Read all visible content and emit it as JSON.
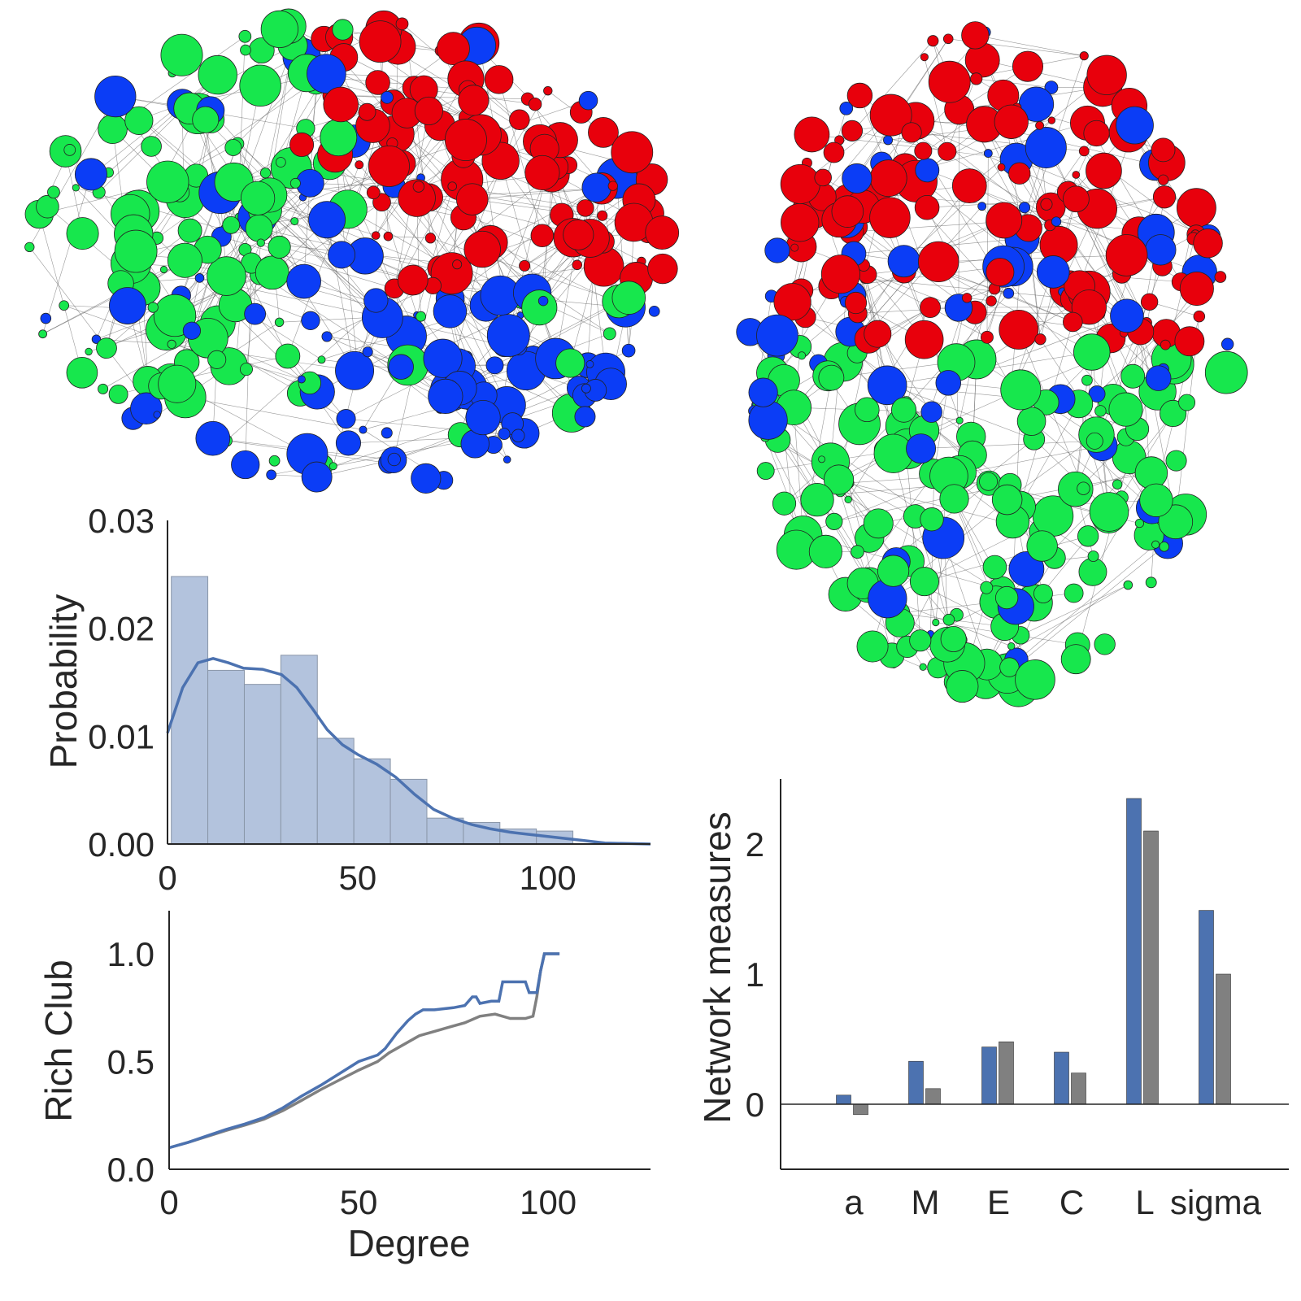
{
  "colors": {
    "green": "#17e74d",
    "red": "#e8000c",
    "blue": "#0b3df6",
    "hist_fill": "#b3c3dd",
    "series_blue": "#4c72b0",
    "series_gray": "#808080",
    "edge": "#555555"
  },
  "network_views": [
    {
      "view": "sagittal",
      "node_colors": [
        "green",
        "red",
        "blue"
      ]
    },
    {
      "view": "axial",
      "node_colors": [
        "green",
        "red",
        "blue"
      ]
    }
  ],
  "chart_data": [
    {
      "type": "bar",
      "subtype": "histogram_with_kde",
      "ylabel": "Probability",
      "xlabel": "",
      "xlim": [
        0,
        127
      ],
      "ylim": [
        0,
        0.03
      ],
      "xticks": [
        "0",
        "50",
        "100"
      ],
      "yticks": [
        "0.00",
        "0.01",
        "0.02",
        "0.03"
      ],
      "bins": [
        {
          "x0": 1,
          "x1": 10.6,
          "value": 0.0248
        },
        {
          "x0": 10.6,
          "x1": 20.2,
          "value": 0.0161
        },
        {
          "x0": 20.2,
          "x1": 29.8,
          "value": 0.0148
        },
        {
          "x0": 29.8,
          "x1": 39.4,
          "value": 0.0175
        },
        {
          "x0": 39.4,
          "x1": 49.0,
          "value": 0.0098
        },
        {
          "x0": 49.0,
          "x1": 58.6,
          "value": 0.0079
        },
        {
          "x0": 58.6,
          "x1": 68.2,
          "value": 0.006
        },
        {
          "x0": 68.2,
          "x1": 77.8,
          "value": 0.0024
        },
        {
          "x0": 77.8,
          "x1": 87.4,
          "value": 0.002
        },
        {
          "x0": 87.4,
          "x1": 97.0,
          "value": 0.0014
        },
        {
          "x0": 97.0,
          "x1": 106.6,
          "value": 0.0012
        }
      ],
      "kde": {
        "x": [
          0,
          4,
          8,
          12,
          16,
          20,
          25,
          30,
          34,
          38,
          42,
          46,
          50,
          55,
          60,
          65,
          70,
          75,
          80,
          85,
          90,
          95,
          100,
          105,
          110,
          115,
          120,
          127
        ],
        "y": [
          0.0103,
          0.0145,
          0.0168,
          0.0172,
          0.0168,
          0.0163,
          0.0162,
          0.0157,
          0.0145,
          0.0126,
          0.0106,
          0.0092,
          0.0083,
          0.0074,
          0.0062,
          0.0046,
          0.0032,
          0.0024,
          0.0018,
          0.0014,
          0.0011,
          0.0009,
          0.0007,
          0.0005,
          0.0003,
          0.0001,
          5e-05,
          0.0
        ]
      }
    },
    {
      "type": "line",
      "ylabel": "Rich Club",
      "xlabel": "Degree",
      "xlim": [
        0,
        127
      ],
      "ylim": [
        0,
        1.2
      ],
      "xticks": [
        "0",
        "50",
        "100"
      ],
      "yticks": [
        "0.0",
        "0.5",
        "1.0"
      ],
      "series": [
        {
          "color": "series_blue",
          "x": [
            0,
            5,
            10,
            15,
            20,
            25,
            30,
            35,
            40,
            45,
            50,
            55,
            57,
            60,
            63,
            65,
            67,
            70,
            75,
            78,
            80,
            81,
            82,
            85,
            87,
            88,
            92,
            94,
            95,
            96,
            97,
            98,
            99,
            100,
            103
          ],
          "y": [
            0.1,
            0.125,
            0.155,
            0.185,
            0.21,
            0.24,
            0.285,
            0.34,
            0.39,
            0.445,
            0.5,
            0.53,
            0.56,
            0.63,
            0.69,
            0.72,
            0.74,
            0.74,
            0.75,
            0.76,
            0.8,
            0.8,
            0.77,
            0.78,
            0.78,
            0.87,
            0.87,
            0.87,
            0.82,
            0.82,
            0.82,
            0.92,
            1.0,
            1.0,
            1.0
          ]
        },
        {
          "color": "series_gray",
          "x": [
            0,
            5,
            10,
            15,
            20,
            25,
            30,
            35,
            40,
            45,
            50,
            55,
            58,
            62,
            66,
            70,
            74,
            78,
            82,
            86,
            90,
            94,
            96,
            97,
            98,
            99,
            103
          ],
          "y": [
            0.1,
            0.125,
            0.152,
            0.18,
            0.205,
            0.232,
            0.272,
            0.32,
            0.37,
            0.415,
            0.46,
            0.5,
            0.54,
            0.58,
            0.62,
            0.64,
            0.66,
            0.68,
            0.71,
            0.72,
            0.7,
            0.7,
            0.71,
            0.8,
            0.92,
            1.0,
            1.0
          ]
        }
      ]
    },
    {
      "type": "bar",
      "ylabel": "Network measures",
      "xlabel": "",
      "ylim": [
        -0.5,
        2.5
      ],
      "yticks": [
        "0",
        "1",
        "2"
      ],
      "categories": [
        "a",
        "M",
        "E",
        "C",
        "L",
        "sigma"
      ],
      "series": [
        {
          "color": "series_blue",
          "values": [
            0.07,
            0.33,
            0.44,
            0.4,
            2.35,
            1.49
          ]
        },
        {
          "color": "series_gray",
          "values": [
            -0.08,
            0.12,
            0.48,
            0.24,
            2.1,
            1.0
          ]
        }
      ]
    }
  ]
}
